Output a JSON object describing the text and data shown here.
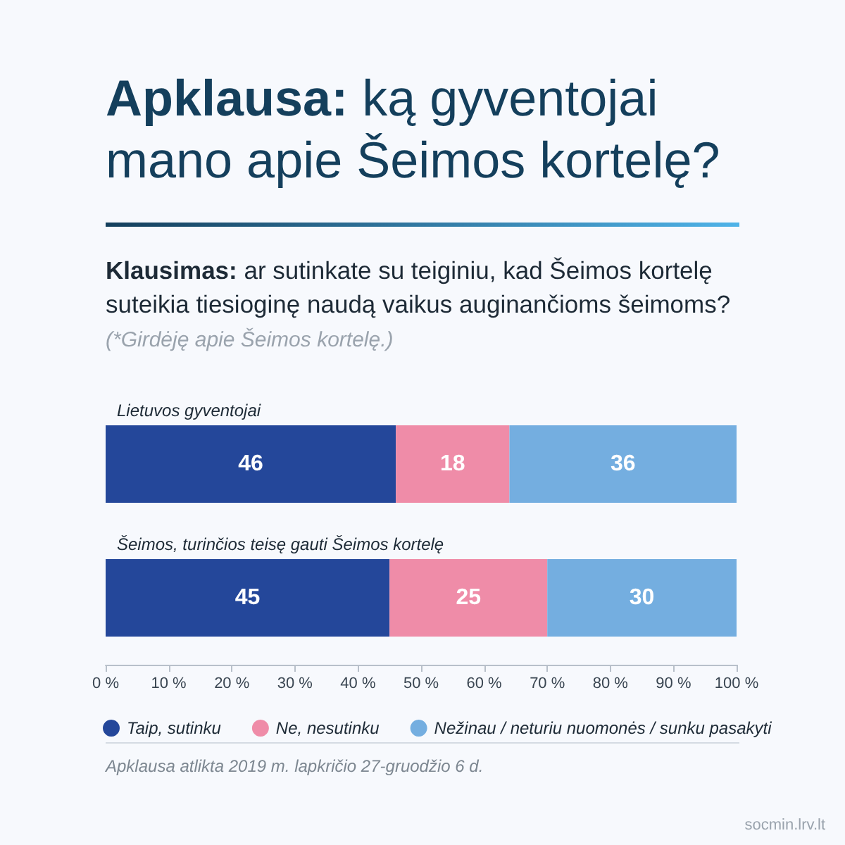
{
  "chart_data": {
    "type": "bar",
    "orientation": "horizontal",
    "stacked": true,
    "title": "Apklausa: ką gyventojai mano apie Šeimos kortelę?",
    "subtitle": "Klausimas: ar sutinkate su teiginiu, kad Šeimos kortelę suteikia tiesioginę naudą vaikus auginančioms šeimoms?",
    "annotations": [
      "(*Girdėję apie Šeimos kortelę.)",
      "Apklausa atlikta 2019 m. lapkričio 27-gruodžio 6 d.",
      "socmin.lrv.lt"
    ],
    "categories": [
      "Lietuvos gyventojai",
      "Šeimos, turinčios teisę gauti Šeimos kortelę"
    ],
    "series": [
      {
        "name": "Taip, sutinku",
        "color": "#24479a",
        "values": [
          46,
          45
        ]
      },
      {
        "name": "Ne, nesutinku",
        "color": "#ef8ca8",
        "values": [
          18,
          25
        ]
      },
      {
        "name": "Nežinau / neturiu nuomonės / sunku pasakyti",
        "color": "#74aee0",
        "values": [
          36,
          30
        ]
      }
    ],
    "xlim": [
      0,
      100
    ],
    "xticks": [
      {
        "value": 0,
        "label": "0 %"
      },
      {
        "value": 10,
        "label": "10 %"
      },
      {
        "value": 20,
        "label": "20 %"
      },
      {
        "value": 30,
        "label": "30 %"
      },
      {
        "value": 40,
        "label": "40 %"
      },
      {
        "value": 50,
        "label": "50 %"
      },
      {
        "value": 60,
        "label": "60 %"
      },
      {
        "value": 70,
        "label": "70 %"
      },
      {
        "value": 80,
        "label": "80 %"
      },
      {
        "value": 90,
        "label": "90 %"
      },
      {
        "value": 100,
        "label": "100 %"
      }
    ],
    "data_labels": true,
    "legend": "bottom",
    "grid": false
  }
}
